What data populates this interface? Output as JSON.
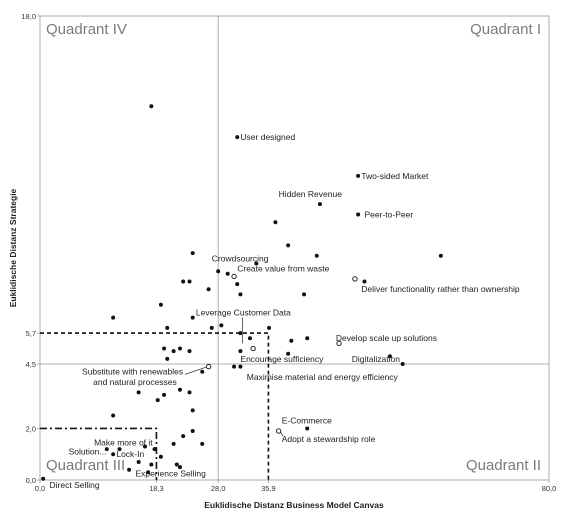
{
  "chart_data": {
    "type": "scatter",
    "xlabel": "Euklidische Distanz Business Model Canvas",
    "ylabel": "Euklidische Distanz Strategie",
    "xlim": [
      0,
      80
    ],
    "ylim": [
      0,
      18
    ],
    "x_tick_labels": [
      "0,0",
      "18,3",
      "28,0",
      "35,9",
      "80,0"
    ],
    "x_tick_values": [
      0,
      18.3,
      28.0,
      35.9,
      80.0
    ],
    "y_tick_labels": [
      "0,0",
      "2,0",
      "4,5",
      "5,7",
      "18,0"
    ],
    "y_tick_values": [
      0,
      2.0,
      4.5,
      5.7,
      18.0
    ],
    "quadrant_divider": {
      "x": 28.0,
      "y": 4.5
    },
    "quadrant_labels": [
      "Quadrant IV",
      "Quadrant I",
      "Quadrant III",
      "Quadrant II"
    ],
    "threshold_box_dashed": {
      "x": 35.9,
      "y": 5.7
    },
    "threshold_box_dashdot": {
      "x": 18.3,
      "y": 2.0
    },
    "points": [
      {
        "x": 17.5,
        "y": 14.5
      },
      {
        "x": 31.0,
        "y": 13.3
      },
      {
        "x": 50.0,
        "y": 11.8
      },
      {
        "x": 44.0,
        "y": 10.7
      },
      {
        "x": 50.0,
        "y": 10.3
      },
      {
        "x": 37.0,
        "y": 10.0
      },
      {
        "x": 39.0,
        "y": 9.1
      },
      {
        "x": 24.0,
        "y": 8.8
      },
      {
        "x": 34.0,
        "y": 8.4
      },
      {
        "x": 43.5,
        "y": 8.7
      },
      {
        "x": 63.0,
        "y": 8.7
      },
      {
        "x": 28.0,
        "y": 8.1
      },
      {
        "x": 29.5,
        "y": 8.0
      },
      {
        "x": 23.5,
        "y": 7.7
      },
      {
        "x": 22.5,
        "y": 7.7
      },
      {
        "x": 26.5,
        "y": 7.4
      },
      {
        "x": 31.0,
        "y": 7.6
      },
      {
        "x": 31.5,
        "y": 7.2
      },
      {
        "x": 41.5,
        "y": 7.2
      },
      {
        "x": 51.0,
        "y": 7.7
      },
      {
        "x": 19.0,
        "y": 6.8
      },
      {
        "x": 11.5,
        "y": 6.3
      },
      {
        "x": 24.0,
        "y": 6.3
      },
      {
        "x": 20.0,
        "y": 5.9
      },
      {
        "x": 27.0,
        "y": 5.9
      },
      {
        "x": 28.5,
        "y": 6.0
      },
      {
        "x": 36.0,
        "y": 5.9
      },
      {
        "x": 31.5,
        "y": 5.7
      },
      {
        "x": 33.0,
        "y": 5.5
      },
      {
        "x": 39.5,
        "y": 5.4
      },
      {
        "x": 42.0,
        "y": 5.5
      },
      {
        "x": 19.5,
        "y": 5.1
      },
      {
        "x": 21.0,
        "y": 5.0
      },
      {
        "x": 22.0,
        "y": 5.1
      },
      {
        "x": 23.5,
        "y": 5.0
      },
      {
        "x": 20.0,
        "y": 4.7
      },
      {
        "x": 31.5,
        "y": 5.0
      },
      {
        "x": 39.0,
        "y": 4.9
      },
      {
        "x": 55.0,
        "y": 4.8
      },
      {
        "x": 57.0,
        "y": 4.5
      },
      {
        "x": 25.5,
        "y": 4.2
      },
      {
        "x": 30.5,
        "y": 4.4
      },
      {
        "x": 31.5,
        "y": 4.4
      },
      {
        "x": 15.5,
        "y": 3.4
      },
      {
        "x": 19.5,
        "y": 3.3
      },
      {
        "x": 22.0,
        "y": 3.5
      },
      {
        "x": 23.5,
        "y": 3.4
      },
      {
        "x": 18.5,
        "y": 3.1
      },
      {
        "x": 24.0,
        "y": 2.7
      },
      {
        "x": 11.5,
        "y": 2.5
      },
      {
        "x": 42.0,
        "y": 2.0
      },
      {
        "x": 22.5,
        "y": 1.7
      },
      {
        "x": 24.0,
        "y": 1.9
      },
      {
        "x": 21.0,
        "y": 1.4
      },
      {
        "x": 25.5,
        "y": 1.4
      },
      {
        "x": 10.5,
        "y": 1.2
      },
      {
        "x": 12.5,
        "y": 1.2
      },
      {
        "x": 16.5,
        "y": 1.3
      },
      {
        "x": 18.0,
        "y": 1.2
      },
      {
        "x": 11.5,
        "y": 1.0
      },
      {
        "x": 19.0,
        "y": 0.9
      },
      {
        "x": 15.5,
        "y": 0.7
      },
      {
        "x": 17.5,
        "y": 0.6
      },
      {
        "x": 21.5,
        "y": 0.6
      },
      {
        "x": 22.0,
        "y": 0.5
      },
      {
        "x": 14.0,
        "y": 0.4
      },
      {
        "x": 17.0,
        "y": 0.3
      },
      {
        "x": 0.5,
        "y": 0.05
      }
    ],
    "open_points": [
      {
        "x": 30.5,
        "y": 7.9
      },
      {
        "x": 49.5,
        "y": 7.8
      },
      {
        "x": 47.0,
        "y": 5.3
      },
      {
        "x": 33.5,
        "y": 5.1
      },
      {
        "x": 26.5,
        "y": 4.4
      },
      {
        "x": 37.5,
        "y": 1.9
      }
    ],
    "annotations": [
      {
        "text": "User designed",
        "x": 31.5,
        "y": 13.3,
        "anchor": "start"
      },
      {
        "text": "Two-sided Market",
        "x": 50.5,
        "y": 11.8,
        "anchor": "start"
      },
      {
        "text": "Hidden Revenue",
        "x": 37.5,
        "y": 11.1,
        "anchor": "start"
      },
      {
        "text": "Peer-to-Peer",
        "x": 51.0,
        "y": 10.3,
        "anchor": "start"
      },
      {
        "text": "Crowdsourcing",
        "x": 27.0,
        "y": 8.6,
        "anchor": "start"
      },
      {
        "text": "Create value from waste",
        "x": 31.0,
        "y": 8.2,
        "anchor": "start"
      },
      {
        "text": "Deliver functionality rather than ownership",
        "x": 50.5,
        "y": 7.4,
        "anchor": "start"
      },
      {
        "text": "Leverage Customer Data",
        "x": 24.5,
        "y": 6.5,
        "anchor": "start"
      },
      {
        "text": "Develop scale up solutions",
        "x": 46.5,
        "y": 5.5,
        "anchor": "start"
      },
      {
        "text": "Encourage sufficiency",
        "x": 31.5,
        "y": 4.7,
        "anchor": "start"
      },
      {
        "text": "Digitalization",
        "x": 49.0,
        "y": 4.7,
        "anchor": "start"
      },
      {
        "text": "Substitute with renewables",
        "x": 22.5,
        "y": 4.2,
        "anchor": "end"
      },
      {
        "text": "and natural processes",
        "x": 21.5,
        "y": 3.8,
        "anchor": "end"
      },
      {
        "text": "Maximise material and energy efficiency",
        "x": 32.5,
        "y": 4.0,
        "anchor": "start"
      },
      {
        "text": "E-Commerce",
        "x": 38.0,
        "y": 2.3,
        "anchor": "start"
      },
      {
        "text": "Adopt a stewardship role",
        "x": 38.0,
        "y": 1.6,
        "anchor": "start"
      },
      {
        "text": "Make more of it",
        "x": 8.5,
        "y": 1.45,
        "anchor": "start"
      },
      {
        "text": "Solution...",
        "x": 4.5,
        "y": 1.1,
        "anchor": "start"
      },
      {
        "text": "Lock-In",
        "x": 12.0,
        "y": 1.0,
        "anchor": "start"
      },
      {
        "text": "Experience Selling",
        "x": 15.0,
        "y": 0.25,
        "anchor": "start"
      },
      {
        "text": "Direct Selling",
        "x": 1.5,
        "y": -0.2,
        "anchor": "start"
      }
    ],
    "leader_lines": [
      {
        "x1": 22.8,
        "y1": 4.1,
        "x2": 26.4,
        "y2": 4.4
      },
      {
        "x1": 31.8,
        "y1": 6.3,
        "x2": 31.8,
        "y2": 5.3
      },
      {
        "x1": 38.2,
        "y1": 1.7,
        "x2": 37.6,
        "y2": 1.95
      }
    ]
  }
}
